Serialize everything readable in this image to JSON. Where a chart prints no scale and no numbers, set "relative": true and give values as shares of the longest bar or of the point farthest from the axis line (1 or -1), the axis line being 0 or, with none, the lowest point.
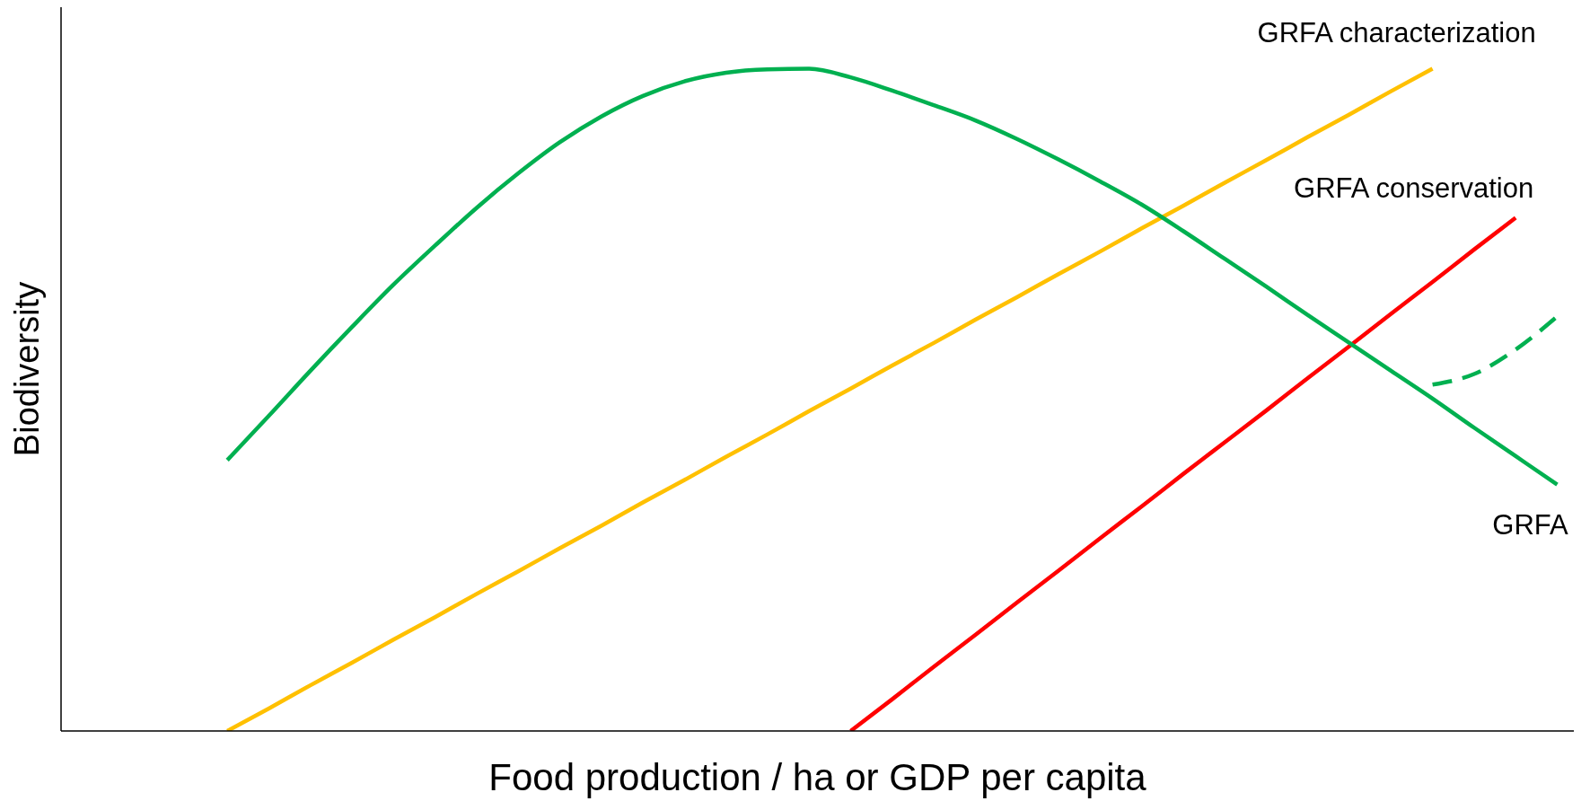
{
  "chart_data": {
    "type": "line",
    "relative": true,
    "xlabel": "Food production / ha or GDP per capita",
    "ylabel": "Biodiversity",
    "legend": false,
    "grid": false,
    "marker": "none",
    "categories": [
      null,
      null,
      null,
      null,
      null,
      null,
      null,
      null,
      null,
      null,
      null,
      null,
      null,
      null,
      null,
      null,
      null,
      null,
      null,
      null,
      null,
      null,
      null,
      null,
      null,
      null,
      null,
      null,
      null,
      null,
      null,
      null,
      null
    ],
    "series": [
      {
        "name": "GRFA characterization",
        "color": "#ffc000",
        "line_style": "solid",
        "values": [
          0,
          0.034,
          0.069,
          0.103,
          0.138,
          0.172,
          0.207,
          0.241,
          0.276,
          0.31,
          0.345,
          0.379,
          0.414,
          0.448,
          0.483,
          0.517,
          0.552,
          0.586,
          0.621,
          0.655,
          0.69,
          0.724,
          0.759,
          0.793,
          0.828,
          0.862,
          0.897,
          0.931,
          0.966,
          1,
          null,
          null,
          null
        ]
      },
      {
        "name": "GRFA conservation",
        "color": "#ff0000",
        "line_style": "solid",
        "values": [
          null,
          null,
          null,
          null,
          null,
          null,
          null,
          null,
          null,
          null,
          null,
          null,
          null,
          null,
          null,
          0,
          0.048,
          0.097,
          0.145,
          0.194,
          0.242,
          0.291,
          0.339,
          0.388,
          0.436,
          0.484,
          0.533,
          0.581,
          0.63,
          0.678,
          0.727,
          0.775,
          null
        ]
      },
      {
        "name": "GRFA",
        "color": "#00b050",
        "line_style": "solid",
        "values": [
          0.409,
          0.476,
          0.544,
          0.61,
          0.674,
          0.733,
          0.79,
          0.842,
          0.889,
          0.928,
          0.959,
          0.981,
          0.994,
          0.999,
          1,
          0.987,
          0.967,
          0.945,
          0.922,
          0.894,
          0.863,
          0.83,
          0.795,
          0.755,
          0.713,
          0.671,
          0.628,
          0.586,
          0.544,
          0.502,
          0.458,
          0.415,
          0.372
        ]
      },
      {
        "color": "#00b050",
        "line_style": "dashed",
        "values": [
          null,
          null,
          null,
          null,
          null,
          null,
          null,
          null,
          null,
          null,
          null,
          null,
          null,
          null,
          null,
          null,
          null,
          null,
          null,
          null,
          null,
          null,
          null,
          null,
          null,
          null,
          null,
          null,
          null,
          0.523,
          0.539,
          0.576,
          0.626
        ]
      }
    ]
  }
}
